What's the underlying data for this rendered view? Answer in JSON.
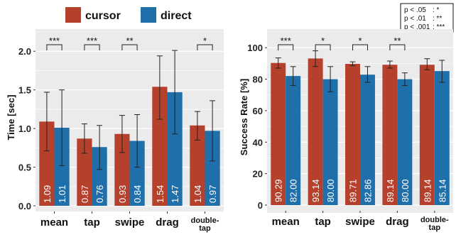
{
  "colors": {
    "cursor": "#b5402c",
    "direct": "#1f6fab",
    "panel": "#ebebeb",
    "grid": "#ffffff"
  },
  "legend": {
    "items": [
      {
        "label": "cursor",
        "color": "#b5402c"
      },
      {
        "label": "direct",
        "color": "#1f6fab"
      }
    ]
  },
  "significance_key": [
    {
      "p": "p < .05",
      "stars": ": *"
    },
    {
      "p": "p < .01",
      "stars": ": **"
    },
    {
      "p": "p < .001",
      "stars": ": ***"
    }
  ],
  "chart_data": [
    {
      "type": "bar",
      "ylabel": "Time [sec]",
      "xlabel": "",
      "ylim": [
        0,
        2.25
      ],
      "yticks": [
        "0.0",
        "0.5",
        "1.0",
        "1.5",
        "2.0"
      ],
      "categories": [
        "mean",
        "tap",
        "swipe",
        "drag",
        "double-tap"
      ],
      "category_lines": [
        [
          "mean"
        ],
        [
          "tap"
        ],
        [
          "swipe"
        ],
        [
          "drag"
        ],
        [
          "double-",
          "tap"
        ]
      ],
      "series": [
        {
          "name": "cursor",
          "values": [
            1.09,
            0.87,
            0.93,
            1.54,
            1.04
          ],
          "labels": [
            "1.09",
            "0.87",
            "0.93",
            "1.54",
            "1.04"
          ],
          "error_low": [
            0.71,
            0.68,
            0.69,
            1.12,
            0.85
          ],
          "error_high": [
            1.47,
            1.06,
            1.17,
            1.94,
            1.22
          ]
        },
        {
          "name": "direct",
          "values": [
            1.01,
            0.76,
            0.84,
            1.47,
            0.97
          ],
          "labels": [
            "1.01",
            "0.76",
            "0.84",
            "1.47",
            "0.97"
          ],
          "error_low": [
            0.52,
            0.47,
            0.5,
            0.93,
            0.58
          ],
          "error_high": [
            1.5,
            1.04,
            1.18,
            2.01,
            1.36
          ]
        }
      ],
      "significance": [
        "***",
        "***",
        "**",
        "",
        "*"
      ]
    },
    {
      "type": "bar",
      "ylabel": "Success Rate [%]",
      "xlabel": "",
      "ylim": [
        0,
        110
      ],
      "yticks": [
        "0",
        "20",
        "40",
        "60",
        "80",
        "100"
      ],
      "categories": [
        "mean",
        "tap",
        "swipe",
        "drag",
        "double-tap"
      ],
      "category_lines": [
        [
          "mean"
        ],
        [
          "tap"
        ],
        [
          "swipe"
        ],
        [
          "drag"
        ],
        [
          "double-",
          "tap"
        ]
      ],
      "series": [
        {
          "name": "cursor",
          "values": [
            90.29,
            93.14,
            89.71,
            89.14,
            89.14
          ],
          "labels": [
            "90.29",
            "93.14",
            "89.71",
            "89.14",
            "89.14"
          ],
          "error_low": [
            87,
            88,
            88.5,
            87,
            86
          ],
          "error_high": [
            93.5,
            98,
            91,
            91.5,
            93
          ]
        },
        {
          "name": "direct",
          "values": [
            82.0,
            80.0,
            82.86,
            80.0,
            85.14
          ],
          "labels": [
            "82.00",
            "80.00",
            "82.86",
            "80.00",
            "85.14"
          ],
          "error_low": [
            76,
            72,
            78,
            76,
            78
          ],
          "error_high": [
            88,
            88,
            88,
            84,
            92
          ]
        }
      ],
      "significance": [
        "***",
        "*",
        "*",
        "**",
        ""
      ]
    }
  ]
}
